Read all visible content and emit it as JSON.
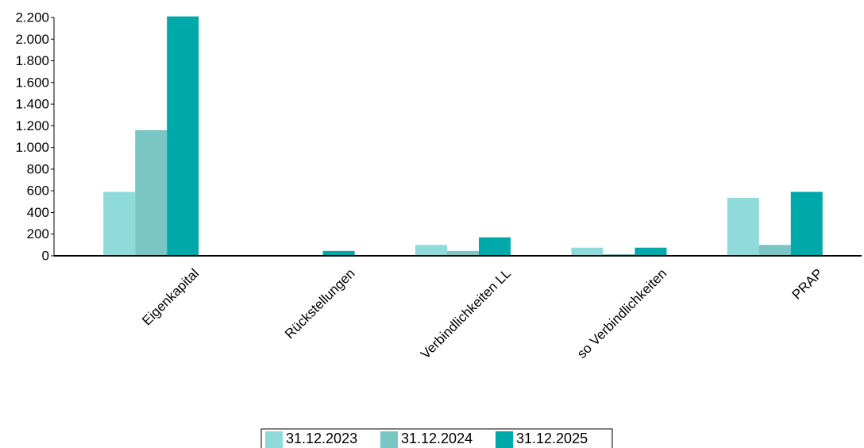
{
  "chart_data": {
    "type": "bar",
    "categories": [
      "Eigenkapital",
      "Rückstellungen",
      "Verbindlichkeiten LL",
      "so Verbindlichkeiten",
      "PRAP"
    ],
    "series": [
      {
        "name": "31.12.2023",
        "color": "#8fdada",
        "values": [
          590,
          5,
          100,
          75,
          535
        ]
      },
      {
        "name": "31.12.2024",
        "color": "#79c6c5",
        "values": [
          1160,
          5,
          45,
          15,
          100
        ]
      },
      {
        "name": "31.12.2025",
        "color": "#00a9a9",
        "values": [
          2210,
          45,
          170,
          75,
          590
        ]
      }
    ],
    "ylim": [
      0,
      2200
    ],
    "yticks": [
      0,
      200,
      400,
      600,
      800,
      {
        "value": 1000,
        "label": "1.000"
      },
      {
        "value": 1200,
        "label": "1.200"
      },
      {
        "value": 1400,
        "label": "1.400"
      },
      {
        "value": 1600,
        "label": "1.600"
      },
      {
        "value": 1800,
        "label": "1.800"
      },
      {
        "value": 2000,
        "label": "2.000"
      },
      {
        "value": 2200,
        "label": "2.200"
      }
    ],
    "grid": false
  }
}
